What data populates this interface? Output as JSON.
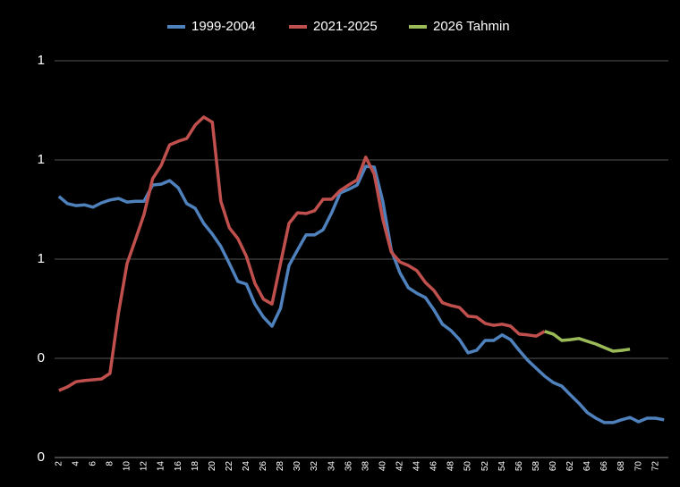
{
  "chart_data": {
    "type": "line",
    "categories": [
      2,
      null,
      4,
      null,
      6,
      null,
      8,
      null,
      10,
      null,
      12,
      null,
      14,
      null,
      16,
      null,
      18,
      null,
      20,
      null,
      22,
      null,
      24,
      null,
      26,
      null,
      28,
      null,
      30,
      null,
      32,
      null,
      34,
      null,
      36,
      null,
      38,
      null,
      40,
      null,
      42,
      null,
      44,
      null,
      46,
      null,
      48,
      null,
      50,
      null,
      52,
      null,
      54,
      null,
      56,
      null,
      58,
      null,
      60,
      null,
      62,
      null,
      64,
      null,
      66,
      null,
      68,
      null,
      70,
      null,
      72,
      null
    ],
    "series": [
      {
        "name": "1999-2004",
        "color": "#4f81bd",
        "values": [
          0.658,
          0.64,
          0.635,
          0.637,
          0.631,
          0.642,
          0.649,
          0.653,
          0.644,
          0.646,
          0.646,
          0.687,
          0.689,
          0.698,
          0.68,
          0.64,
          0.628,
          0.59,
          0.563,
          0.532,
          0.489,
          0.444,
          0.437,
          0.387,
          0.354,
          0.331,
          0.376,
          0.484,
          0.523,
          0.561,
          0.561,
          0.574,
          0.617,
          0.667,
          0.676,
          0.687,
          0.734,
          0.732,
          0.646,
          0.523,
          0.466,
          0.428,
          0.414,
          0.403,
          0.372,
          0.336,
          0.32,
          0.297,
          0.264,
          0.27,
          0.295,
          0.295,
          0.309,
          0.297,
          0.27,
          0.245,
          0.225,
          0.205,
          0.189,
          0.18,
          0.158,
          0.137,
          0.113,
          0.099,
          0.088,
          0.088,
          0.095,
          0.101,
          0.09,
          0.099,
          0.099,
          0.095
        ]
      },
      {
        "name": "2021-2025",
        "color": "#c0504d",
        "values": [
          0.169,
          0.178,
          0.191,
          0.194,
          0.196,
          0.198,
          0.212,
          0.365,
          0.489,
          0.55,
          0.613,
          0.703,
          0.736,
          0.788,
          0.797,
          0.804,
          0.838,
          0.858,
          0.845,
          0.646,
          0.579,
          0.552,
          0.507,
          0.439,
          0.399,
          0.387,
          0.489,
          0.59,
          0.617,
          0.615,
          0.622,
          0.651,
          0.651,
          0.673,
          0.687,
          0.7,
          0.757,
          0.714,
          0.601,
          0.518,
          0.493,
          0.484,
          0.471,
          0.441,
          0.421,
          0.39,
          0.383,
          0.378,
          0.356,
          0.354,
          0.338,
          0.333,
          0.336,
          0.331,
          0.311,
          0.309,
          0.306,
          0.318,
          null,
          null,
          null,
          null,
          null,
          null,
          null,
          null,
          null,
          null,
          null,
          null,
          null,
          null
        ]
      },
      {
        "name": "2026 Tahmin",
        "color": "#9bbb59",
        "values": [
          null,
          null,
          null,
          null,
          null,
          null,
          null,
          null,
          null,
          null,
          null,
          null,
          null,
          null,
          null,
          null,
          null,
          null,
          null,
          null,
          null,
          null,
          null,
          null,
          null,
          null,
          null,
          null,
          null,
          null,
          null,
          null,
          null,
          null,
          null,
          null,
          null,
          null,
          null,
          null,
          null,
          null,
          null,
          null,
          null,
          null,
          null,
          null,
          null,
          null,
          null,
          null,
          null,
          null,
          null,
          null,
          null,
          0.318,
          0.311,
          0.295,
          0.297,
          0.3,
          0.293,
          0.286,
          0.277,
          0.268,
          0.27,
          0.273,
          null,
          null,
          null,
          null
        ]
      }
    ],
    "ylim": [
      0,
      1
    ],
    "yticks": [
      0,
      {
        "value": 0.25,
        "label": "0"
      },
      {
        "value": 0.5,
        "label": "1"
      },
      {
        "value": 0.75,
        "label": "1"
      },
      1
    ],
    "grid": true,
    "legend": "top"
  }
}
